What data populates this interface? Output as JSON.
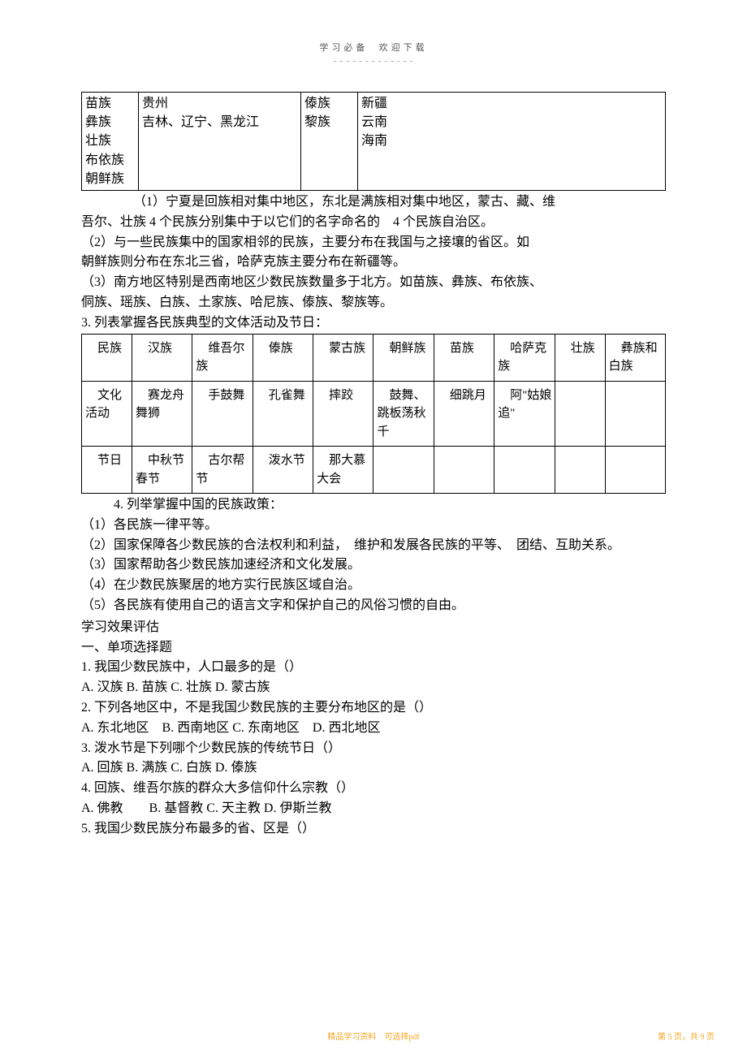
{
  "header": {
    "left": "学习必备",
    "right": "欢迎下载",
    "underline": "- - - - - - - - - - - - -"
  },
  "table1": {
    "r1c1": "苗族\n彝族\n壮族\n布依族\n朝鲜族",
    "r1c2": "贵州\n吉林、辽宁、黑龙江",
    "r1c3": "傣族\n黎族",
    "r1c4": "新疆\n云南\n海南"
  },
  "para1": {
    "l1a": "（1）宁夏是回族相对集中地区，东北是满族相对集中地区，蒙古、藏、维",
    "l1b": "吾尔、壮族  4 个民族分别集中于以它们的名字命名的　4 个民族自治区。",
    "l2a": "（2）与一些民族集中的国家相邻的民族，主要分布在我国与之接壤的省区。如",
    "l2b": "朝鲜族则分布在东北三省，哈萨克族主要分布在新疆等。",
    "l3a": "（3）南方地区特别是西南地区少数民族数量多于北方。如苗族、彝族、布依族、",
    "l3b": "侗族、瑶族、白族、土家族、哈尼族、傣族、黎族等。",
    "l4": "3. 列表掌握各民族典型的文体活动及节日："
  },
  "table2": {
    "h": [
      "　民族",
      "　汉族",
      "　维吾尔族",
      "　傣族",
      "　蒙古族",
      "　朝鲜族",
      "　苗族",
      "　哈萨克族",
      "　壮族",
      "　彝族和白族"
    ],
    "r2": [
      "　文化活动",
      "　赛龙舟舞狮",
      "　手鼓舞",
      "　孔雀舞",
      "　摔跤",
      "　鼓舞、跳板荡秋千",
      "　细跳月",
      "　阿\"姑娘追\"",
      "",
      ""
    ],
    "r3": [
      "　节日",
      "　中秋节春节",
      "　古尔帮节",
      "　泼水节",
      "　那大慕大会",
      "",
      "",
      "",
      "",
      ""
    ]
  },
  "para2": {
    "l1": "4. 列举掌握中国的民族政策：",
    "items": [
      "（1）各民族一律平等。",
      "（2）国家保障各少数民族的合法权利和利益，　维护和发展各民族的平等、　团结、互助关系。",
      "（3）国家帮助各少数民族加速经济和文化发展。",
      "（4）在少数民族聚居的地方实行民族区域自治。",
      "（5）各民族有使用自己的语言文字和保护自己的风俗习惯的自由。"
    ]
  },
  "eval": {
    "t": "学习效果评估",
    "sec": "一、单项选择题",
    "q": [
      "1. 我国少数民族中，人口最多的是（）",
      "A. 汉族  B. 苗族  C. 壮族  D. 蒙古族",
      "2. 下列各地区中，不是我国少数民族的主要分布地区的是（）",
      "A. 东北地区　B. 西南地区  C. 东南地区　D. 西北地区",
      "3. 泼水节是下列哪个少数民族的传统节日（）",
      "A. 回族  B. 满族  C. 白族  D. 傣族",
      "4. 回族、维吾尔族的群众大多信仰什么宗教（）",
      "A. 佛教　　B. 基督教  C. 天主教  D. 伊斯兰教",
      "5. 我国少数民族分布最多的省、区是（）"
    ]
  },
  "footer": {
    "center": "精品学习资料　可选择pdf",
    "right": "第 5 页，共 9 页"
  },
  "colors": {
    "text": "#000000",
    "header": "#555555",
    "footer": "#f5a623",
    "border": "#000000",
    "bg": "#ffffff"
  },
  "typography": {
    "body_fontsize": 16,
    "header_fontsize": 11,
    "footer_fontsize": 10,
    "line_height": 1.55
  }
}
